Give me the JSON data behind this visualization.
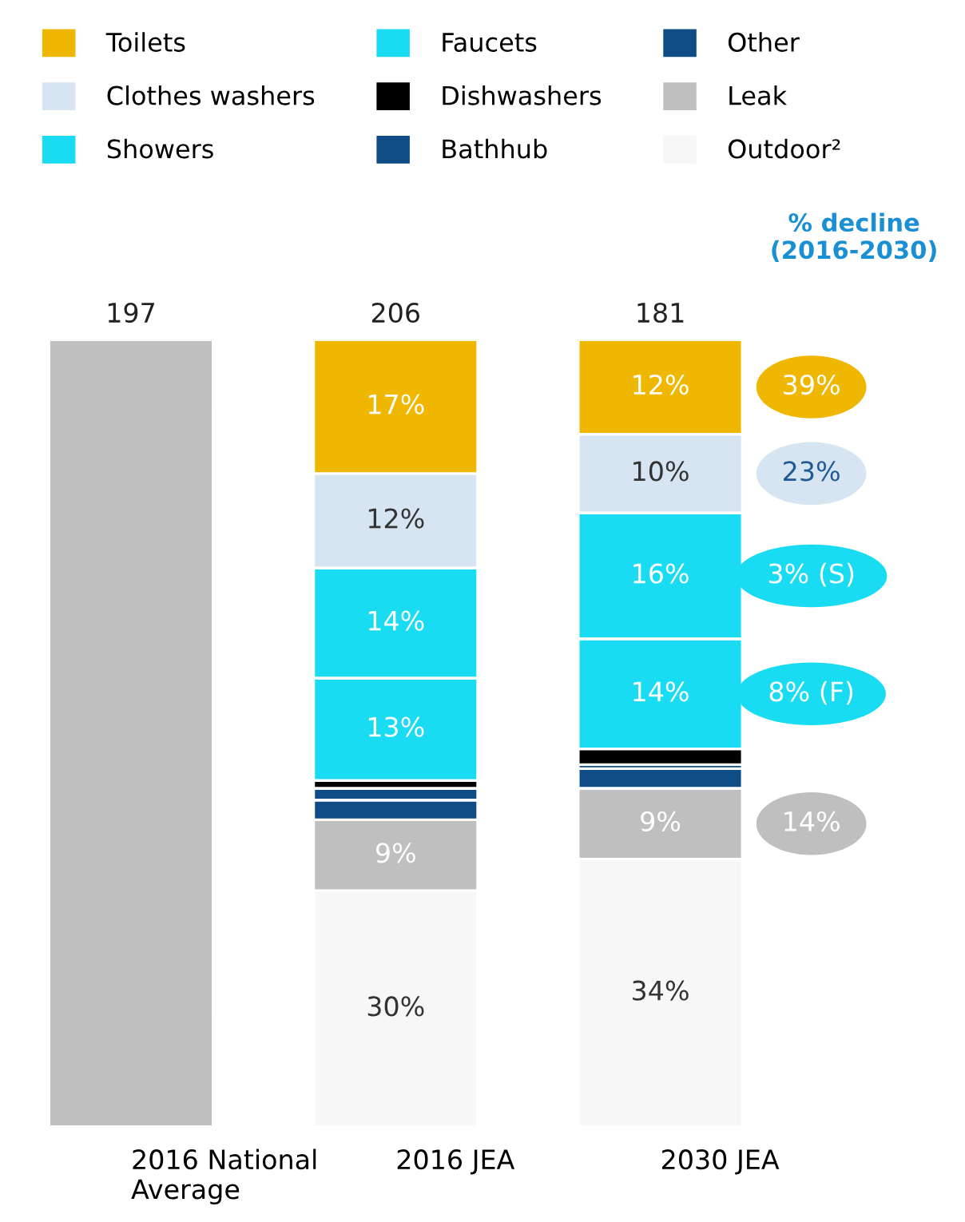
{
  "chart_data": {
    "type": "bar",
    "stacked": true,
    "categories": [
      "2016 National\nAverage",
      "2016 JEA",
      "2030 JEA"
    ],
    "ylim": [
      0,
      100
    ],
    "tick_labels": "x",
    "series": [
      {
        "color": "#bfbfbf",
        "values": [
          100,
          null,
          null
        ]
      },
      {
        "name": "Outdoor²",
        "color": "#f7f7f7",
        "values": [
          null,
          30,
          34
        ],
        "value_labels": [
          null,
          "30%",
          "34%"
        ]
      },
      {
        "name": "Leak",
        "color": "#bfbfbf",
        "values": [
          null,
          9,
          9
        ],
        "value_labels": [
          null,
          "9%",
          "9%"
        ]
      },
      {
        "name": "Other",
        "color": "#0f4c86",
        "values": [
          null,
          2.5,
          2.5
        ]
      },
      {
        "name": "Bathhub",
        "color": "#0f4c86",
        "values": [
          null,
          1.5,
          0.5
        ]
      },
      {
        "name": "Dishwashers",
        "color": "#000000",
        "values": [
          null,
          1,
          2
        ]
      },
      {
        "name": "Faucets",
        "color": "#19dcf2",
        "values": [
          null,
          13,
          14
        ],
        "value_labels": [
          null,
          "13%",
          "14%"
        ]
      },
      {
        "name": "Showers",
        "color": "#19dcf2",
        "values": [
          null,
          14,
          16
        ],
        "value_labels": [
          null,
          "14%",
          "16%"
        ]
      },
      {
        "name": "Clothes washers",
        "color": "#d7e5f2",
        "values": [
          null,
          12,
          10
        ],
        "value_labels": [
          null,
          "12%",
          "10%"
        ]
      },
      {
        "name": "Toilets",
        "color": "#efb700",
        "values": [
          null,
          17,
          12
        ],
        "value_labels": [
          null,
          "17%",
          "12%"
        ]
      }
    ],
    "legend": "top",
    "grid": false,
    "annotations": [
      "% decline\n(2016-2030)",
      "39%",
      "23%",
      "3% (S)",
      "8% (F)",
      "14%",
      {
        "text": "197",
        "x": "2016 National\nAverage",
        "y": 100
      },
      {
        "text": "206",
        "x": "2016 JEA",
        "y": 100
      },
      {
        "text": "181",
        "x": "2030 JEA",
        "y": 100
      }
    ]
  }
}
